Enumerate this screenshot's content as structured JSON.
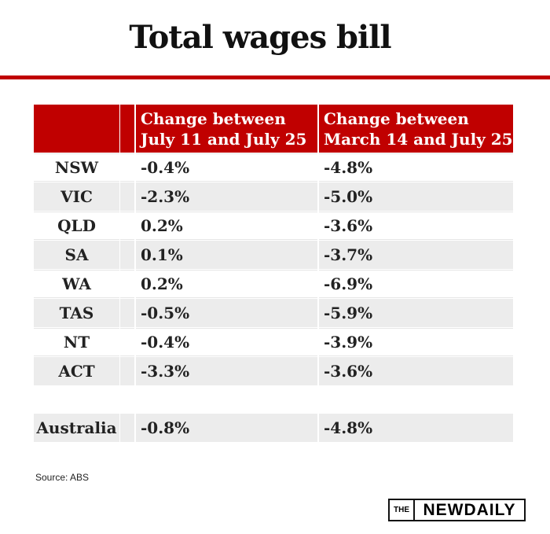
{
  "header": {
    "title": "Total wages bill"
  },
  "table": {
    "columns": [
      "Change between July 11 and July 25",
      "Change between March 14 and July 25"
    ],
    "rows": [
      [
        "NSW",
        "-0.4%",
        "-4.8%"
      ],
      [
        "VIC",
        "-2.3%",
        "-5.0%"
      ],
      [
        "QLD",
        "0.2%",
        "-3.6%"
      ],
      [
        "SA",
        "0.1%",
        "-3.7%"
      ],
      [
        "WA",
        "0.2%",
        "-6.9%"
      ],
      [
        "TAS",
        "-0.5%",
        "-5.9%"
      ],
      [
        "NT",
        "-0.4%",
        "-3.9%"
      ],
      [
        "ACT",
        "-3.3%",
        "-3.6%"
      ]
    ],
    "total": [
      "Australia",
      "-0.8%",
      "-4.8%"
    ]
  },
  "source": "Source: ABS",
  "logo": {
    "small": "THE",
    "main": "NEWDAILY"
  }
}
